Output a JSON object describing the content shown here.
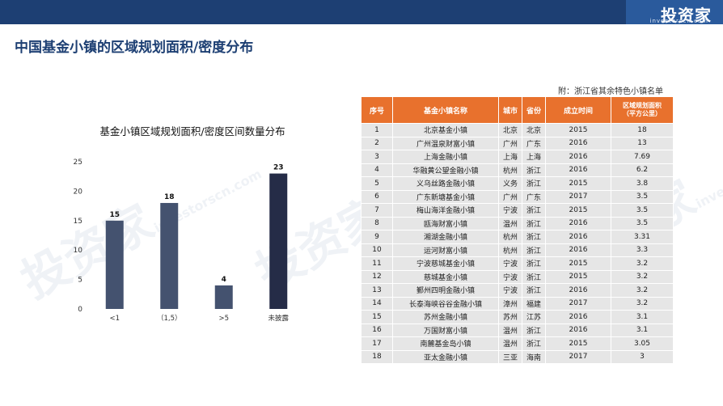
{
  "header": {
    "logo_text": "投资家",
    "logo_sub": "investorscn.com"
  },
  "page": {
    "title": "中国基金小镇的区域规划面积/密度分布",
    "note": "附：浙江省其余特色小镇名单"
  },
  "watermark": {
    "text": "投资家",
    "sub": "investorscn.com"
  },
  "chart_data": {
    "type": "bar",
    "title": "基金小镇区域规划面积/密度区间数量分布",
    "categories": [
      "<1",
      "（1,5）",
      ">5",
      "未披露"
    ],
    "values": [
      15,
      18,
      4,
      23
    ],
    "ylim": [
      0,
      25
    ],
    "yticks": [
      0,
      5,
      10,
      15,
      20,
      25
    ],
    "colors": [
      "#44526f",
      "#44526f",
      "#44526f",
      "#252c47"
    ],
    "grid": false,
    "legend": "none"
  },
  "table": {
    "headers": [
      "序号",
      "基金小镇名称",
      "城市",
      "省份",
      "成立时间",
      "区域规划面积（平方公里）"
    ],
    "header_area_line1": "区域规划面积",
    "header_area_line2": "（平方公里）",
    "rows": [
      [
        "1",
        "北京基金小镇",
        "北京",
        "北京",
        "2015",
        "18"
      ],
      [
        "2",
        "广州温泉财富小镇",
        "广州",
        "广东",
        "2016",
        "13"
      ],
      [
        "3",
        "上海金融小镇",
        "上海",
        "上海",
        "2016",
        "7.69"
      ],
      [
        "4",
        "华融黄公望金融小镇",
        "杭州",
        "浙江",
        "2016",
        "6.2"
      ],
      [
        "5",
        "义乌丝路金融小镇",
        "义务",
        "浙江",
        "2015",
        "3.8"
      ],
      [
        "6",
        "广东新塘基金小镇",
        "广州",
        "广东",
        "2017",
        "3.5"
      ],
      [
        "7",
        "梅山海洋金融小镇",
        "宁波",
        "浙江",
        "2015",
        "3.5"
      ],
      [
        "8",
        "瓯海财富小镇",
        "温州",
        "浙江",
        "2016",
        "3.5"
      ],
      [
        "9",
        "湘湖金融小镇",
        "杭州",
        "浙江",
        "2016",
        "3.31"
      ],
      [
        "10",
        "运河财富小镇",
        "杭州",
        "浙江",
        "2016",
        "3.3"
      ],
      [
        "11",
        "宁波慈城基金小镇",
        "宁波",
        "浙江",
        "2015",
        "3.2"
      ],
      [
        "12",
        "慈城基金小镇",
        "宁波",
        "浙江",
        "2015",
        "3.2"
      ],
      [
        "13",
        "鄞州四明金融小镇",
        "宁波",
        "浙江",
        "2016",
        "3.2"
      ],
      [
        "14",
        "长泰海峡谷谷金融小镇",
        "漳州",
        "福建",
        "2017",
        "3.2"
      ],
      [
        "15",
        "苏州金融小镇",
        "苏州",
        "江苏",
        "2016",
        "3.1"
      ],
      [
        "16",
        "万国财富小镇",
        "温州",
        "浙江",
        "2016",
        "3.1"
      ],
      [
        "17",
        "南麓基金岛小镇",
        "温州",
        "浙江",
        "2015",
        "3.05"
      ],
      [
        "18",
        "亚太金融小镇",
        "三亚",
        "海南",
        "2017",
        "3"
      ]
    ]
  }
}
